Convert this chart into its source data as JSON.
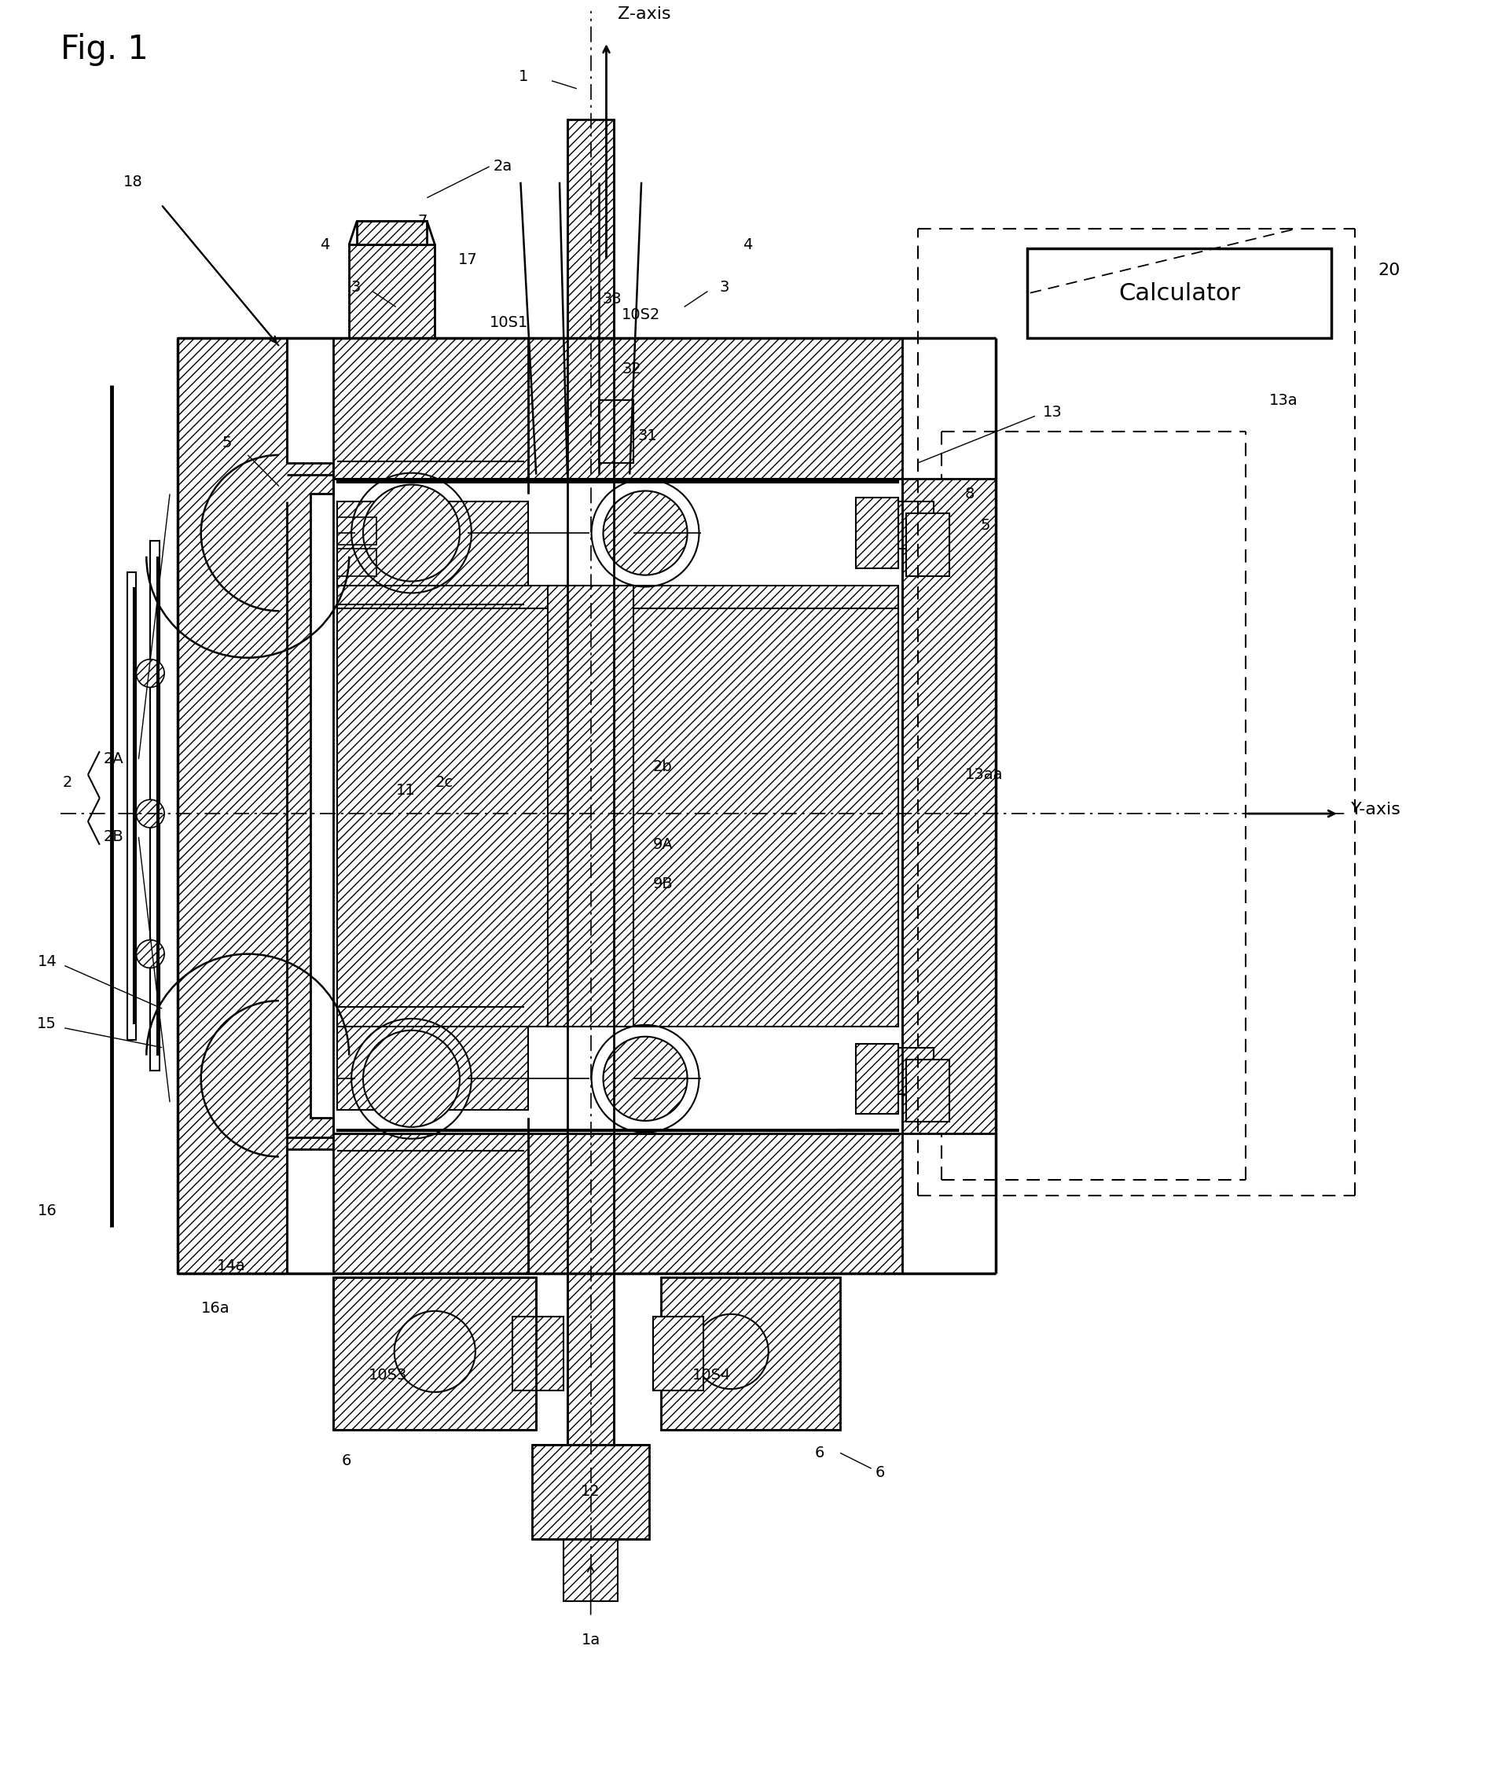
{
  "fig_title": "Fig. 1",
  "z_axis": "Z-axis",
  "y_axis": "Y-axis",
  "calculator": "Calculator",
  "labels": {
    "1": "1",
    "1a": "1a",
    "2": "2",
    "2A": "2A",
    "2B": "2B",
    "2a": "2a",
    "2b": "2b",
    "2c": "2c",
    "3": "3",
    "4": "4",
    "5": "5",
    "6": "6",
    "7": "7",
    "8": "8",
    "9A": "9A",
    "9B": "9B",
    "10S1": "10S1",
    "10S2": "10S2",
    "10S3": "10S3",
    "10S4": "10S4",
    "11": "11",
    "12": "12",
    "13": "13",
    "13a": "13a",
    "13aa": "13aa",
    "14": "14",
    "14a": "14a",
    "15": "15",
    "16": "16",
    "16a": "16a",
    "17": "17",
    "18": "18",
    "20": "20",
    "31": "31",
    "32": "32",
    "33": "33"
  }
}
